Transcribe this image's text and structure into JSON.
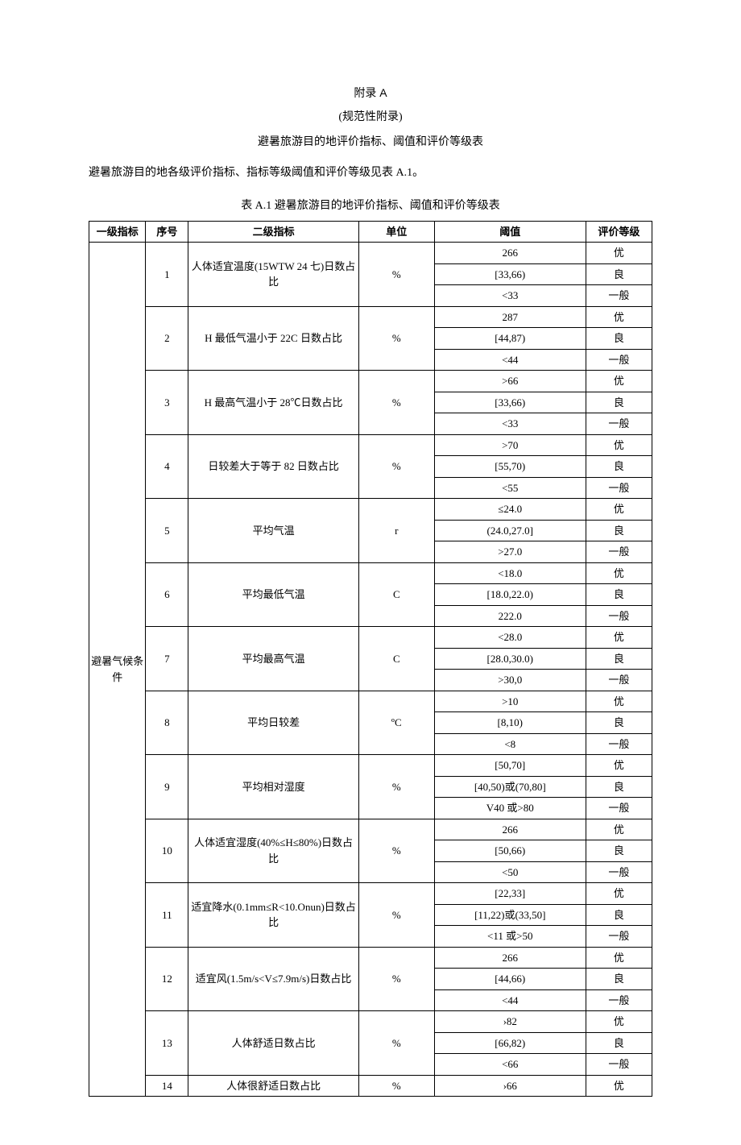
{
  "header": {
    "appendix": "附录 A",
    "normative": "(规范性附录)",
    "title": "避暑旅游目的地评价指标、阈值和评价等级表"
  },
  "intro": "避暑旅游目的地各级评价指标、指标等级阈值和评价等级见表 A.1。",
  "table_caption": "表 A.1 避暑旅游目的地评价指标、阈值和评价等级表",
  "columns": {
    "c1": "一级指标",
    "c2": "序号",
    "c3": "二级指标",
    "c4": "单位",
    "c5": "阈值",
    "c6": "评价等级"
  },
  "level1_label": "避暑气候条件",
  "groups": [
    {
      "no": "1",
      "indicator": "人体适宜温度(15WTW 24 七)日数占比",
      "unit": "%",
      "rows": [
        {
          "v": "266",
          "g": "优"
        },
        {
          "v": "[33,66)",
          "g": "良"
        },
        {
          "v": "<33",
          "g": "一般"
        }
      ]
    },
    {
      "no": "2",
      "indicator": "H 最低气温小于 22C 日数占比",
      "unit": "%",
      "rows": [
        {
          "v": "287",
          "g": "优"
        },
        {
          "v": "[44,87)",
          "g": "良"
        },
        {
          "v": "<44",
          "g": "一般"
        }
      ]
    },
    {
      "no": "3",
      "indicator": "H 最高气温小于 28℃日数占比",
      "unit": "%",
      "rows": [
        {
          "v": ">66",
          "g": "优"
        },
        {
          "v": "[33,66)",
          "g": "良"
        },
        {
          "v": "<33",
          "g": "一般"
        }
      ]
    },
    {
      "no": "4",
      "indicator": "日较差大于等于 82 日数占比",
      "unit": "%",
      "rows": [
        {
          "v": ">70",
          "g": "优"
        },
        {
          "v": "[55,70)",
          "g": "良"
        },
        {
          "v": "<55",
          "g": "一般"
        }
      ]
    },
    {
      "no": "5",
      "indicator": "平均气温",
      "unit": "r",
      "rows": [
        {
          "v": "≤24.0",
          "g": "优"
        },
        {
          "v": "(24.0,27.0]",
          "g": "良"
        },
        {
          "v": ">27.0",
          "g": "一般"
        }
      ]
    },
    {
      "no": "6",
      "indicator": "平均最低气温",
      "unit": "C",
      "rows": [
        {
          "v": "<18.0",
          "g": "优"
        },
        {
          "v": "[18.0,22.0)",
          "g": "良"
        },
        {
          "v": "222.0",
          "g": "一般"
        }
      ]
    },
    {
      "no": "7",
      "indicator": "平均最高气温",
      "unit": "C",
      "rows": [
        {
          "v": "<28.0",
          "g": "优"
        },
        {
          "v": "[28.0,30.0)",
          "g": "良"
        },
        {
          "v": ">30,0",
          "g": "一般"
        }
      ]
    },
    {
      "no": "8",
      "indicator": "平均日较差",
      "unit": "ºC",
      "rows": [
        {
          "v": ">10",
          "g": "优"
        },
        {
          "v": "[8,10)",
          "g": "良"
        },
        {
          "v": "<8",
          "g": "一般"
        }
      ]
    },
    {
      "no": "9",
      "indicator": "平均相对湿度",
      "unit": "%",
      "rows": [
        {
          "v": "[50,70]",
          "g": "优"
        },
        {
          "v": "[40,50)或(70,80]",
          "g": "良"
        },
        {
          "v": "V40 或>80",
          "g": "一般"
        }
      ]
    },
    {
      "no": "10",
      "indicator": "人体适宜湿度(40%≤H≤80%)日数占比",
      "unit": "%",
      "rows": [
        {
          "v": "266",
          "g": "优"
        },
        {
          "v": "[50,66)",
          "g": "良"
        },
        {
          "v": "<50",
          "g": "一般"
        }
      ]
    },
    {
      "no": "11",
      "indicator": "适宜降水(0.1mm≤R<10.Onun)日数占比",
      "unit": "%",
      "rows": [
        {
          "v": "[22,33]",
          "g": "优"
        },
        {
          "v": "[11,22)或(33,50]",
          "g": "良"
        },
        {
          "v": "<11 或>50",
          "g": "一般"
        }
      ]
    },
    {
      "no": "12",
      "indicator": "适宜风(1.5m/s<V≤7.9m/s)日数占比",
      "unit": "%",
      "rows": [
        {
          "v": "266",
          "g": "优"
        },
        {
          "v": "[44,66)",
          "g": "良"
        },
        {
          "v": "<44",
          "g": "一般"
        }
      ]
    },
    {
      "no": "13",
      "indicator": "人体舒适日数占比",
      "unit": "%",
      "rows": [
        {
          "v": "›82",
          "g": "优"
        },
        {
          "v": "[66,82)",
          "g": "良"
        },
        {
          "v": "<66",
          "g": "一般"
        }
      ]
    },
    {
      "no": "14",
      "indicator": "人体很舒适日数占比",
      "unit": "%",
      "rows": [
        {
          "v": "›66",
          "g": "优"
        }
      ]
    }
  ]
}
